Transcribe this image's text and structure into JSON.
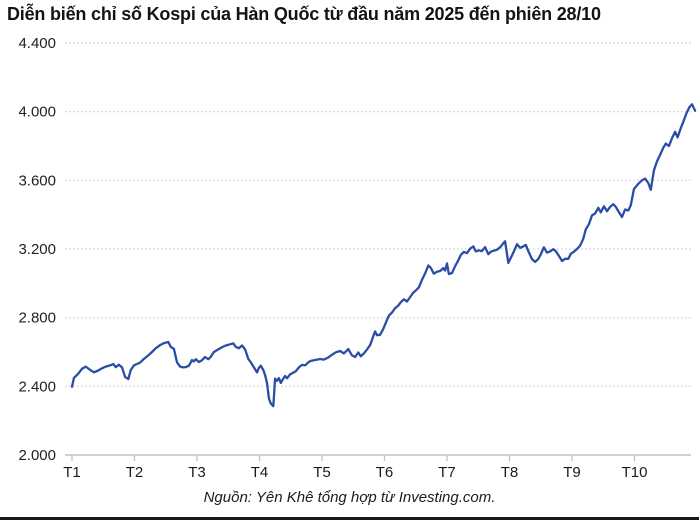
{
  "title": "Diễn biến chỉ số Kospi của Hàn Quốc từ đầu năm 2025 đến phiên 28/10",
  "source_text": "Nguồn: Yên Khê tổng hợp từ Investing.com.",
  "colors": {
    "line": "#2a4da6",
    "grid_dotted": "#cfcfcf",
    "axis": "#c2c2c2",
    "title_text": "#141414",
    "tick_label": "#222222",
    "bottom_bar": "#17181c",
    "background": "#ffffff"
  },
  "chart_data": {
    "type": "line",
    "title": "Diễn biến chỉ số Kospi của Hàn Quốc từ đầu năm 2025 đến phiên 28/10",
    "xlabel": "",
    "ylabel": "",
    "grid": "horizontal-dotted",
    "legend": "none",
    "xlim": [
      1,
      10.97
    ],
    "ylim": [
      2000,
      4400
    ],
    "x_tick_positions": [
      1,
      2,
      3,
      4,
      5,
      6,
      7,
      8,
      9,
      10
    ],
    "x_tick_labels": [
      "T1",
      "T2",
      "T3",
      "T4",
      "T5",
      "T6",
      "T7",
      "T8",
      "T9",
      "T10"
    ],
    "y_ticks": [
      2000,
      2400,
      2800,
      3200,
      3600,
      4000,
      4400
    ],
    "y_tick_labels": [
      "2.000",
      "2.400",
      "2.800",
      "3.200",
      "3.600",
      "4.000",
      "4.400"
    ],
    "series": [
      {
        "name": "Kospi",
        "points": [
          [
            1.0,
            2398
          ],
          [
            1.03,
            2448
          ],
          [
            1.1,
            2474
          ],
          [
            1.16,
            2502
          ],
          [
            1.22,
            2515
          ],
          [
            1.29,
            2496
          ],
          [
            1.35,
            2482
          ],
          [
            1.42,
            2492
          ],
          [
            1.48,
            2505
          ],
          [
            1.54,
            2515
          ],
          [
            1.61,
            2522
          ],
          [
            1.66,
            2530
          ],
          [
            1.7,
            2512
          ],
          [
            1.75,
            2526
          ],
          [
            1.8,
            2510
          ],
          [
            1.85,
            2455
          ],
          [
            1.9,
            2442
          ],
          [
            1.94,
            2495
          ],
          [
            1.99,
            2522
          ],
          [
            2.04,
            2530
          ],
          [
            2.09,
            2538
          ],
          [
            2.15,
            2560
          ],
          [
            2.22,
            2580
          ],
          [
            2.28,
            2600
          ],
          [
            2.34,
            2622
          ],
          [
            2.41,
            2640
          ],
          [
            2.47,
            2652
          ],
          [
            2.54,
            2658
          ],
          [
            2.58,
            2630
          ],
          [
            2.63,
            2618
          ],
          [
            2.68,
            2540
          ],
          [
            2.73,
            2515
          ],
          [
            2.78,
            2510
          ],
          [
            2.82,
            2512
          ],
          [
            2.87,
            2520
          ],
          [
            2.92,
            2553
          ],
          [
            2.95,
            2545
          ],
          [
            2.98,
            2558
          ],
          [
            3.03,
            2542
          ],
          [
            3.08,
            2552
          ],
          [
            3.13,
            2570
          ],
          [
            3.18,
            2558
          ],
          [
            3.22,
            2572
          ],
          [
            3.27,
            2600
          ],
          [
            3.34,
            2615
          ],
          [
            3.4,
            2628
          ],
          [
            3.46,
            2638
          ],
          [
            3.53,
            2645
          ],
          [
            3.58,
            2650
          ],
          [
            3.62,
            2630
          ],
          [
            3.67,
            2622
          ],
          [
            3.72,
            2638
          ],
          [
            3.77,
            2615
          ],
          [
            3.82,
            2560
          ],
          [
            3.86,
            2540
          ],
          [
            3.91,
            2510
          ],
          [
            3.96,
            2481
          ],
          [
            3.99,
            2508
          ],
          [
            4.02,
            2520
          ],
          [
            4.06,
            2495
          ],
          [
            4.09,
            2465
          ],
          [
            4.12,
            2420
          ],
          [
            4.15,
            2330
          ],
          [
            4.18,
            2300
          ],
          [
            4.22,
            2284
          ],
          [
            4.25,
            2445
          ],
          [
            4.28,
            2432
          ],
          [
            4.31,
            2448
          ],
          [
            4.34,
            2420
          ],
          [
            4.38,
            2445
          ],
          [
            4.41,
            2460
          ],
          [
            4.44,
            2447
          ],
          [
            4.49,
            2470
          ],
          [
            4.54,
            2480
          ],
          [
            4.58,
            2488
          ],
          [
            4.63,
            2510
          ],
          [
            4.68,
            2525
          ],
          [
            4.73,
            2522
          ],
          [
            4.78,
            2540
          ],
          [
            4.82,
            2548
          ],
          [
            4.87,
            2552
          ],
          [
            4.92,
            2556
          ],
          [
            4.97,
            2559
          ],
          [
            5.03,
            2556
          ],
          [
            5.1,
            2568
          ],
          [
            5.16,
            2584
          ],
          [
            5.22,
            2598
          ],
          [
            5.29,
            2606
          ],
          [
            5.35,
            2592
          ],
          [
            5.42,
            2617
          ],
          [
            5.48,
            2580
          ],
          [
            5.53,
            2571
          ],
          [
            5.58,
            2597
          ],
          [
            5.62,
            2575
          ],
          [
            5.67,
            2592
          ],
          [
            5.72,
            2615
          ],
          [
            5.77,
            2640
          ],
          [
            5.82,
            2692
          ],
          [
            5.85,
            2720
          ],
          [
            5.88,
            2698
          ],
          [
            5.93,
            2700
          ],
          [
            5.98,
            2735
          ],
          [
            6.02,
            2770
          ],
          [
            6.07,
            2812
          ],
          [
            6.12,
            2830
          ],
          [
            6.17,
            2855
          ],
          [
            6.22,
            2871
          ],
          [
            6.26,
            2890
          ],
          [
            6.31,
            2907
          ],
          [
            6.36,
            2894
          ],
          [
            6.41,
            2920
          ],
          [
            6.46,
            2946
          ],
          [
            6.5,
            2958
          ],
          [
            6.55,
            2977
          ],
          [
            6.6,
            3021
          ],
          [
            6.65,
            3058
          ],
          [
            6.7,
            3104
          ],
          [
            6.74,
            3090
          ],
          [
            6.79,
            3056
          ],
          [
            6.84,
            3068
          ],
          [
            6.89,
            3072
          ],
          [
            6.94,
            3089
          ],
          [
            6.97,
            3075
          ],
          [
            7.0,
            3116
          ],
          [
            7.03,
            3054
          ],
          [
            7.08,
            3060
          ],
          [
            7.13,
            3100
          ],
          [
            7.18,
            3134
          ],
          [
            7.22,
            3165
          ],
          [
            7.27,
            3183
          ],
          [
            7.32,
            3176
          ],
          [
            7.37,
            3202
          ],
          [
            7.42,
            3215
          ],
          [
            7.46,
            3186
          ],
          [
            7.51,
            3192
          ],
          [
            7.56,
            3188
          ],
          [
            7.61,
            3211
          ],
          [
            7.66,
            3170
          ],
          [
            7.7,
            3184
          ],
          [
            7.75,
            3190
          ],
          [
            7.8,
            3196
          ],
          [
            7.85,
            3210
          ],
          [
            7.9,
            3233
          ],
          [
            7.93,
            3245
          ],
          [
            7.98,
            3119
          ],
          [
            8.02,
            3148
          ],
          [
            8.07,
            3186
          ],
          [
            8.12,
            3228
          ],
          [
            8.17,
            3207
          ],
          [
            8.22,
            3215
          ],
          [
            8.26,
            3224
          ],
          [
            8.31,
            3180
          ],
          [
            8.36,
            3141
          ],
          [
            8.41,
            3125
          ],
          [
            8.46,
            3142
          ],
          [
            8.5,
            3169
          ],
          [
            8.55,
            3210
          ],
          [
            8.6,
            3179
          ],
          [
            8.65,
            3186
          ],
          [
            8.7,
            3199
          ],
          [
            8.74,
            3187
          ],
          [
            8.79,
            3160
          ],
          [
            8.84,
            3130
          ],
          [
            8.89,
            3143
          ],
          [
            8.94,
            3143
          ],
          [
            8.98,
            3172
          ],
          [
            9.03,
            3184
          ],
          [
            9.08,
            3200
          ],
          [
            9.13,
            3219
          ],
          [
            9.18,
            3260
          ],
          [
            9.22,
            3315
          ],
          [
            9.27,
            3344
          ],
          [
            9.32,
            3396
          ],
          [
            9.37,
            3407
          ],
          [
            9.42,
            3440
          ],
          [
            9.46,
            3413
          ],
          [
            9.51,
            3449
          ],
          [
            9.56,
            3420
          ],
          [
            9.61,
            3445
          ],
          [
            9.66,
            3461
          ],
          [
            9.7,
            3445
          ],
          [
            9.75,
            3415
          ],
          [
            9.8,
            3386
          ],
          [
            9.85,
            3430
          ],
          [
            9.9,
            3424
          ],
          [
            9.94,
            3455
          ],
          [
            9.99,
            3549
          ],
          [
            10.06,
            3580
          ],
          [
            10.12,
            3600
          ],
          [
            10.17,
            3610
          ],
          [
            10.22,
            3584
          ],
          [
            10.26,
            3545
          ],
          [
            10.31,
            3657
          ],
          [
            10.36,
            3710
          ],
          [
            10.41,
            3748
          ],
          [
            10.46,
            3790
          ],
          [
            10.5,
            3814
          ],
          [
            10.55,
            3800
          ],
          [
            10.6,
            3845
          ],
          [
            10.65,
            3883
          ],
          [
            10.69,
            3850
          ],
          [
            10.74,
            3905
          ],
          [
            10.78,
            3941
          ],
          [
            10.83,
            3990
          ],
          [
            10.88,
            4027
          ],
          [
            10.92,
            4043
          ],
          [
            10.97,
            4005
          ]
        ]
      }
    ]
  }
}
